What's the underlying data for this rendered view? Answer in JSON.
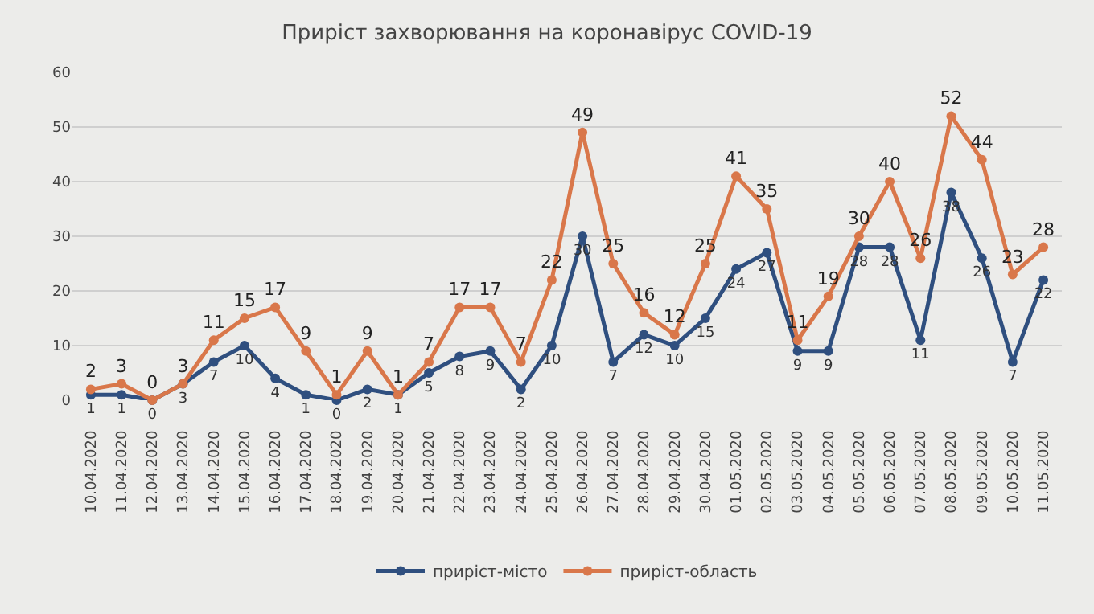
{
  "chart_data": {
    "type": "line",
    "title": "Приріст захворювання на коронавірус COVID-19",
    "categories": [
      "10.04.2020",
      "11.04.2020",
      "12.04.2020",
      "13.04.2020",
      "14.04.2020",
      "15.04.2020",
      "16.04.2020",
      "17.04.2020",
      "18.04.2020",
      "19.04.2020",
      "20.04.2020",
      "21.04.2020",
      "22.04.2020",
      "23.04.2020",
      "24.04.2020",
      "25.04.2020",
      "26.04.2020",
      "27.04.2020",
      "28.04.2020",
      "29.04.2020",
      "30.04.2020",
      "01.05.2020",
      "02.05.2020",
      "03.05.2020",
      "04.05.2020",
      "05.05.2020",
      "06.05.2020",
      "07.05.2020",
      "08.05.2020",
      "09.05.2020",
      "10.05.2020",
      "11.05.2020"
    ],
    "series": [
      {
        "name": "приріст-місто",
        "color": "#2f4f7f",
        "values": [
          1,
          1,
          0,
          3,
          7,
          10,
          4,
          1,
          0,
          2,
          1,
          5,
          8,
          9,
          2,
          10,
          30,
          7,
          12,
          10,
          15,
          24,
          27,
          9,
          9,
          28,
          28,
          11,
          38,
          26,
          7,
          22
        ]
      },
      {
        "name": "приріст-область",
        "color": "#d9774a",
        "values": [
          2,
          3,
          0,
          3,
          11,
          15,
          17,
          9,
          1,
          9,
          1,
          7,
          17,
          17,
          7,
          22,
          49,
          25,
          16,
          12,
          25,
          41,
          35,
          11,
          19,
          30,
          40,
          26,
          52,
          44,
          23,
          28
        ]
      }
    ],
    "ylim": [
      0,
      60
    ],
    "yticks": [
      0,
      10,
      20,
      30,
      40,
      50,
      60
    ],
    "grid": "y",
    "legend": "bottom",
    "marker": "circle",
    "line_style": "solid",
    "data_labels": true
  }
}
